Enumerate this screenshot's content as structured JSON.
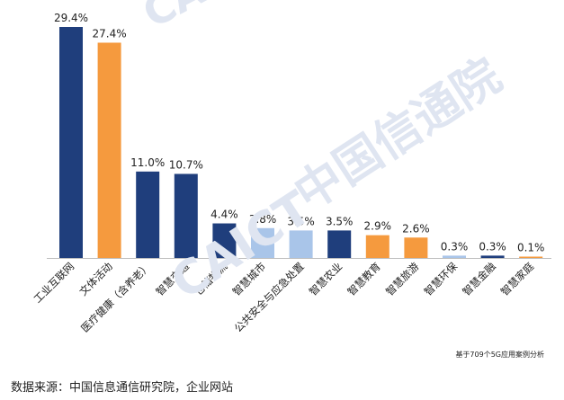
{
  "watermark": {
    "brand": "CAICT",
    "org": "中国信通院"
  },
  "note": "基于709个5G应用案例分析",
  "source": "数据来源：中国信息通信研究院，企业网站",
  "colors": {
    "blue": "#1f3e7c",
    "orange": "#f59a3e",
    "lightblue": "#a9c5e9",
    "axis": "#bfbfbf",
    "label": "#222222"
  },
  "chart_data": {
    "type": "bar",
    "title": "",
    "xlabel": "",
    "ylabel": "",
    "ylim": [
      0,
      30
    ],
    "grid": false,
    "legend": "none",
    "categories": [
      "工业互联网",
      "文体活动",
      "医疗健康（含养老）",
      "智慧交通",
      "仓储物流",
      "智慧城市",
      "公共安全与应急处置",
      "智慧农业",
      "智慧教育",
      "智慧旅游",
      "智慧环保",
      "智慧金融",
      "智慧家庭"
    ],
    "values": [
      29.4,
      27.4,
      11.0,
      10.7,
      4.4,
      3.8,
      3.5,
      3.5,
      2.9,
      2.6,
      0.3,
      0.3,
      0.1
    ],
    "value_labels": [
      "29.4%",
      "27.4%",
      "11.0%",
      "10.7%",
      "4.4%",
      "3.8%",
      "3.5%",
      "3.5%",
      "2.9%",
      "2.6%",
      "0.3%",
      "0.3%",
      "0.1%"
    ],
    "bar_colors": [
      "blue",
      "orange",
      "blue",
      "blue",
      "blue",
      "lightblue",
      "lightblue",
      "blue",
      "orange",
      "orange",
      "lightblue",
      "blue",
      "orange"
    ]
  }
}
